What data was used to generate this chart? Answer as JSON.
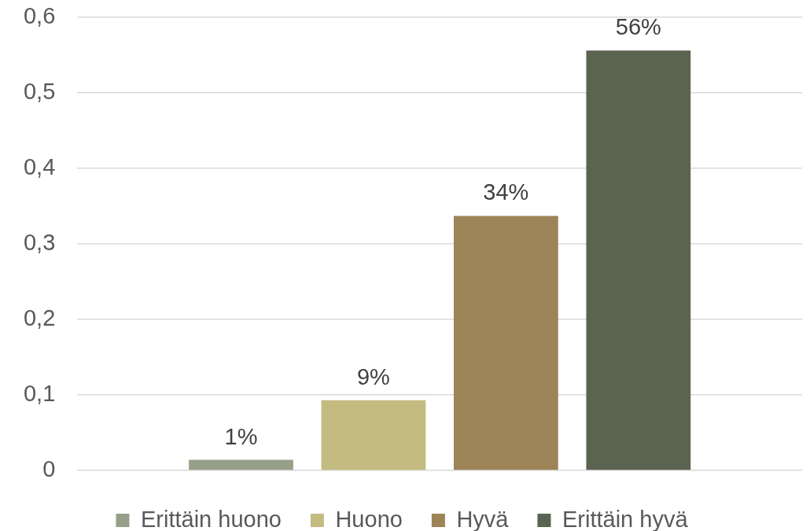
{
  "chart_data": {
    "type": "bar",
    "categories": [
      null
    ],
    "series": [
      {
        "name": "Erittäin huono",
        "color": "#96a088",
        "values": [
          0.014
        ],
        "value_labels": [
          "1%"
        ]
      },
      {
        "name": "Huono",
        "color": "#c3bb80",
        "values": [
          0.093
        ],
        "value_labels": [
          "9%"
        ]
      },
      {
        "name": "Hyvä",
        "color": "#9c8358",
        "values": [
          0.337
        ],
        "value_labels": [
          "34%"
        ]
      },
      {
        "name": "Erittäin hyvä",
        "color": "#5a6450",
        "values": [
          0.556
        ],
        "value_labels": [
          "56%"
        ]
      }
    ],
    "ylim": [
      0,
      0.6
    ],
    "yticks": [
      0,
      {
        "value": 0.1,
        "label": "0,1"
      },
      {
        "value": 0.2,
        "label": "0,2"
      },
      {
        "value": 0.3,
        "label": "0,3"
      },
      {
        "value": 0.4,
        "label": "0,4"
      },
      {
        "value": 0.5,
        "label": "0,5"
      },
      {
        "value": 0.6,
        "label": "0,6"
      }
    ],
    "grid": "y",
    "legend": "bottom",
    "tick_labels": "y"
  }
}
